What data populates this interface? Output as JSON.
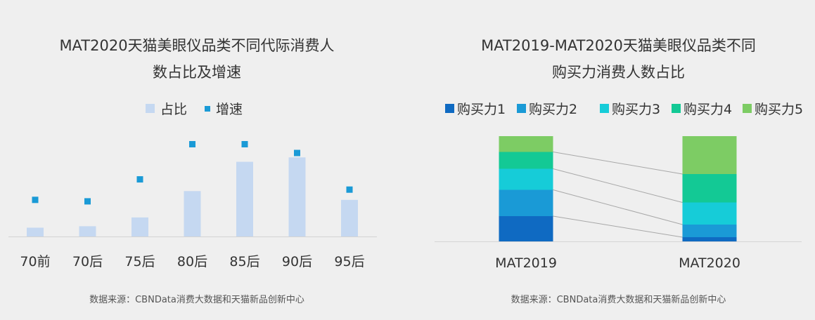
{
  "chart_data": [
    {
      "type": "bar",
      "title_line1": "MAT2020天猫美眼仪品类不同代际消费人",
      "title_line2": "数占比及增速",
      "legend": [
        {
          "name": "占比",
          "color": "#c5d8f1",
          "marker": "square"
        },
        {
          "name": "增速",
          "color": "#1a9ad6",
          "marker": "small-square"
        }
      ],
      "categories": [
        "70前",
        "70后",
        "75后",
        "80后",
        "85后",
        "90后",
        "95后"
      ],
      "series": [
        {
          "name": "占比",
          "kind": "bar",
          "values": [
            3,
            3.5,
            6.5,
            15.5,
            25.5,
            27,
            12.5
          ]
        },
        {
          "name": "增速",
          "kind": "marker",
          "values": [
            12.5,
            12,
            19.5,
            31.5,
            31.5,
            28.5,
            16
          ]
        }
      ],
      "ylim": [
        0,
        40
      ],
      "grid": false,
      "legend_position": "top-center",
      "source": "数据来源：CBNData消费大数据和天猫新品创新中心"
    },
    {
      "type": "bar",
      "stacked": true,
      "percent": true,
      "title_line1": "MAT2019-MAT2020天猫美眼仪品类不同",
      "title_line2": "购买力消费人数占比",
      "categories": [
        "MAT2019",
        "MAT2020"
      ],
      "series": [
        {
          "name": "购买力1",
          "color": "#0f6ac2",
          "values": [
            24,
            4
          ]
        },
        {
          "name": "购买力2",
          "color": "#1a9ad6",
          "values": [
            25,
            12
          ]
        },
        {
          "name": "购买力3",
          "color": "#16ccd8",
          "values": [
            20,
            21
          ]
        },
        {
          "name": "购买力4",
          "color": "#13c995",
          "values": [
            16,
            27
          ]
        },
        {
          "name": "购买力5",
          "color": "#7dcc64",
          "values": [
            15,
            36
          ]
        }
      ],
      "ylim": [
        0,
        100
      ],
      "legend_position": "top-center",
      "source": "数据来源：CBNData消费大数据和天猫新品创新中心"
    }
  ]
}
